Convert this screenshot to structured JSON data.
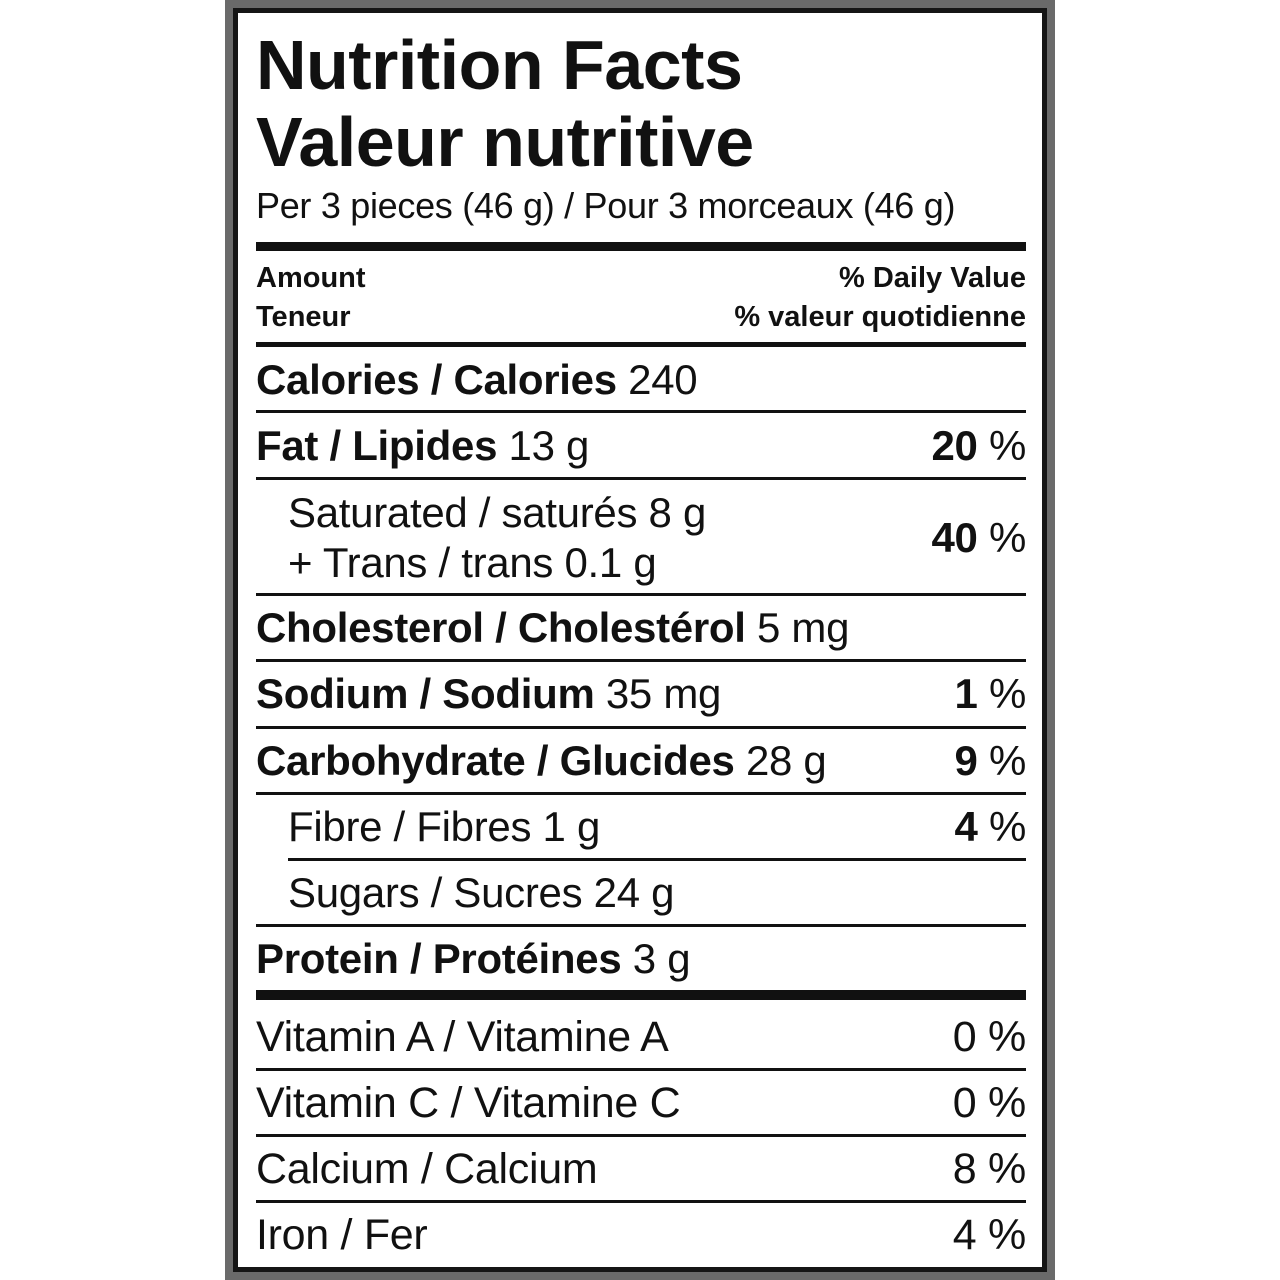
{
  "title_en": "Nutrition Facts",
  "title_fr": "Valeur nutritive",
  "serving": "Per 3 pieces (46 g) / Pour 3 morceaux (46 g)",
  "header": {
    "amount_en": "Amount",
    "amount_fr": "Teneur",
    "dv_en": "% Daily Value",
    "dv_fr": "% valeur quotidienne"
  },
  "calories": {
    "label": "Calories / Calories",
    "value": "240"
  },
  "nutrients": [
    {
      "label": "Fat / Lipides",
      "amount": "13 g",
      "dv": "20",
      "unit": "%"
    },
    {
      "label": "Saturated / saturés 8 g",
      "label2": "+ Trans / trans 0.1 g",
      "dv": "40",
      "unit": "%"
    },
    {
      "label": "Cholesterol / Cholestérol",
      "amount": "5 mg"
    },
    {
      "label": "Sodium / Sodium",
      "amount": "35 mg",
      "dv": "1",
      "unit": "%"
    },
    {
      "label": "Carbohydrate / Glucides",
      "amount": "28 g",
      "dv": "9",
      "unit": "%"
    },
    {
      "label": "Fibre / Fibres 1 g",
      "dv": "4",
      "unit": "%"
    },
    {
      "label": "Sugars / Sucres 24 g"
    },
    {
      "label": "Protein / Protéines",
      "amount": "3 g"
    }
  ],
  "minerals": [
    {
      "label": "Vitamin A / Vitamine A",
      "dv": "0 %"
    },
    {
      "label": "Vitamin C / Vitamine C",
      "dv": "0 %"
    },
    {
      "label": "Calcium / Calcium",
      "dv": "8 %"
    },
    {
      "label": "Iron / Fer",
      "dv": "4 %"
    }
  ]
}
